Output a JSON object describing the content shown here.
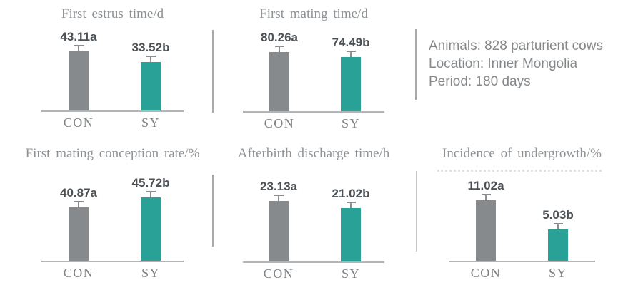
{
  "info_panel": {
    "lines": [
      "Animals: 828 parturient cows",
      "Location: Inner Mongolia",
      "Period: 180 days"
    ]
  },
  "colors": {
    "con_bar": "#868a8d",
    "sy_bar": "#2aa196",
    "error_bar": "#8a8e91",
    "axis_line": "#b2b5b8",
    "divider": "#a6aaad",
    "title_text": "#8e9295",
    "value_text": "#4c5156",
    "category_text": "#7d8184",
    "info_text": "#85898c"
  },
  "chart_data": [
    {
      "type": "bar",
      "title": "First estrus time/d",
      "categories": [
        "CON",
        "SY"
      ],
      "values": [
        43.11,
        33.52
      ],
      "value_labels": [
        "43.11a",
        "33.52b"
      ],
      "series_colors": [
        "#868a8d",
        "#2aa196"
      ],
      "error_bars": true,
      "legend": "none",
      "grid": false
    },
    {
      "type": "bar",
      "title": "First mating time/d",
      "categories": [
        "CON",
        "SY"
      ],
      "values": [
        80.26,
        74.49
      ],
      "value_labels": [
        "80.26a",
        "74.49b"
      ],
      "series_colors": [
        "#868a8d",
        "#2aa196"
      ],
      "error_bars": true,
      "legend": "none",
      "grid": false
    },
    {
      "type": "bar",
      "title": "First mating conception rate/%",
      "categories": [
        "CON",
        "SY"
      ],
      "values": [
        40.87,
        45.72
      ],
      "value_labels": [
        "40.87a",
        "45.72b"
      ],
      "series_colors": [
        "#868a8d",
        "#2aa196"
      ],
      "error_bars": true,
      "legend": "none",
      "grid": false
    },
    {
      "type": "bar",
      "title": "Afterbirth discharge time/h",
      "categories": [
        "CON",
        "SY"
      ],
      "values": [
        23.13,
        21.02
      ],
      "value_labels": [
        "23.13a",
        "21.02b"
      ],
      "series_colors": [
        "#868a8d",
        "#2aa196"
      ],
      "error_bars": true,
      "legend": "none",
      "grid": false
    },
    {
      "type": "bar",
      "title": "Incidence of undergrowth/%",
      "categories": [
        "CON",
        "SY"
      ],
      "values": [
        11.02,
        5.03
      ],
      "value_labels": [
        "11.02a",
        "5.03b"
      ],
      "series_colors": [
        "#868a8d",
        "#2aa196"
      ],
      "error_bars": true,
      "legend": "none",
      "grid": false
    }
  ]
}
